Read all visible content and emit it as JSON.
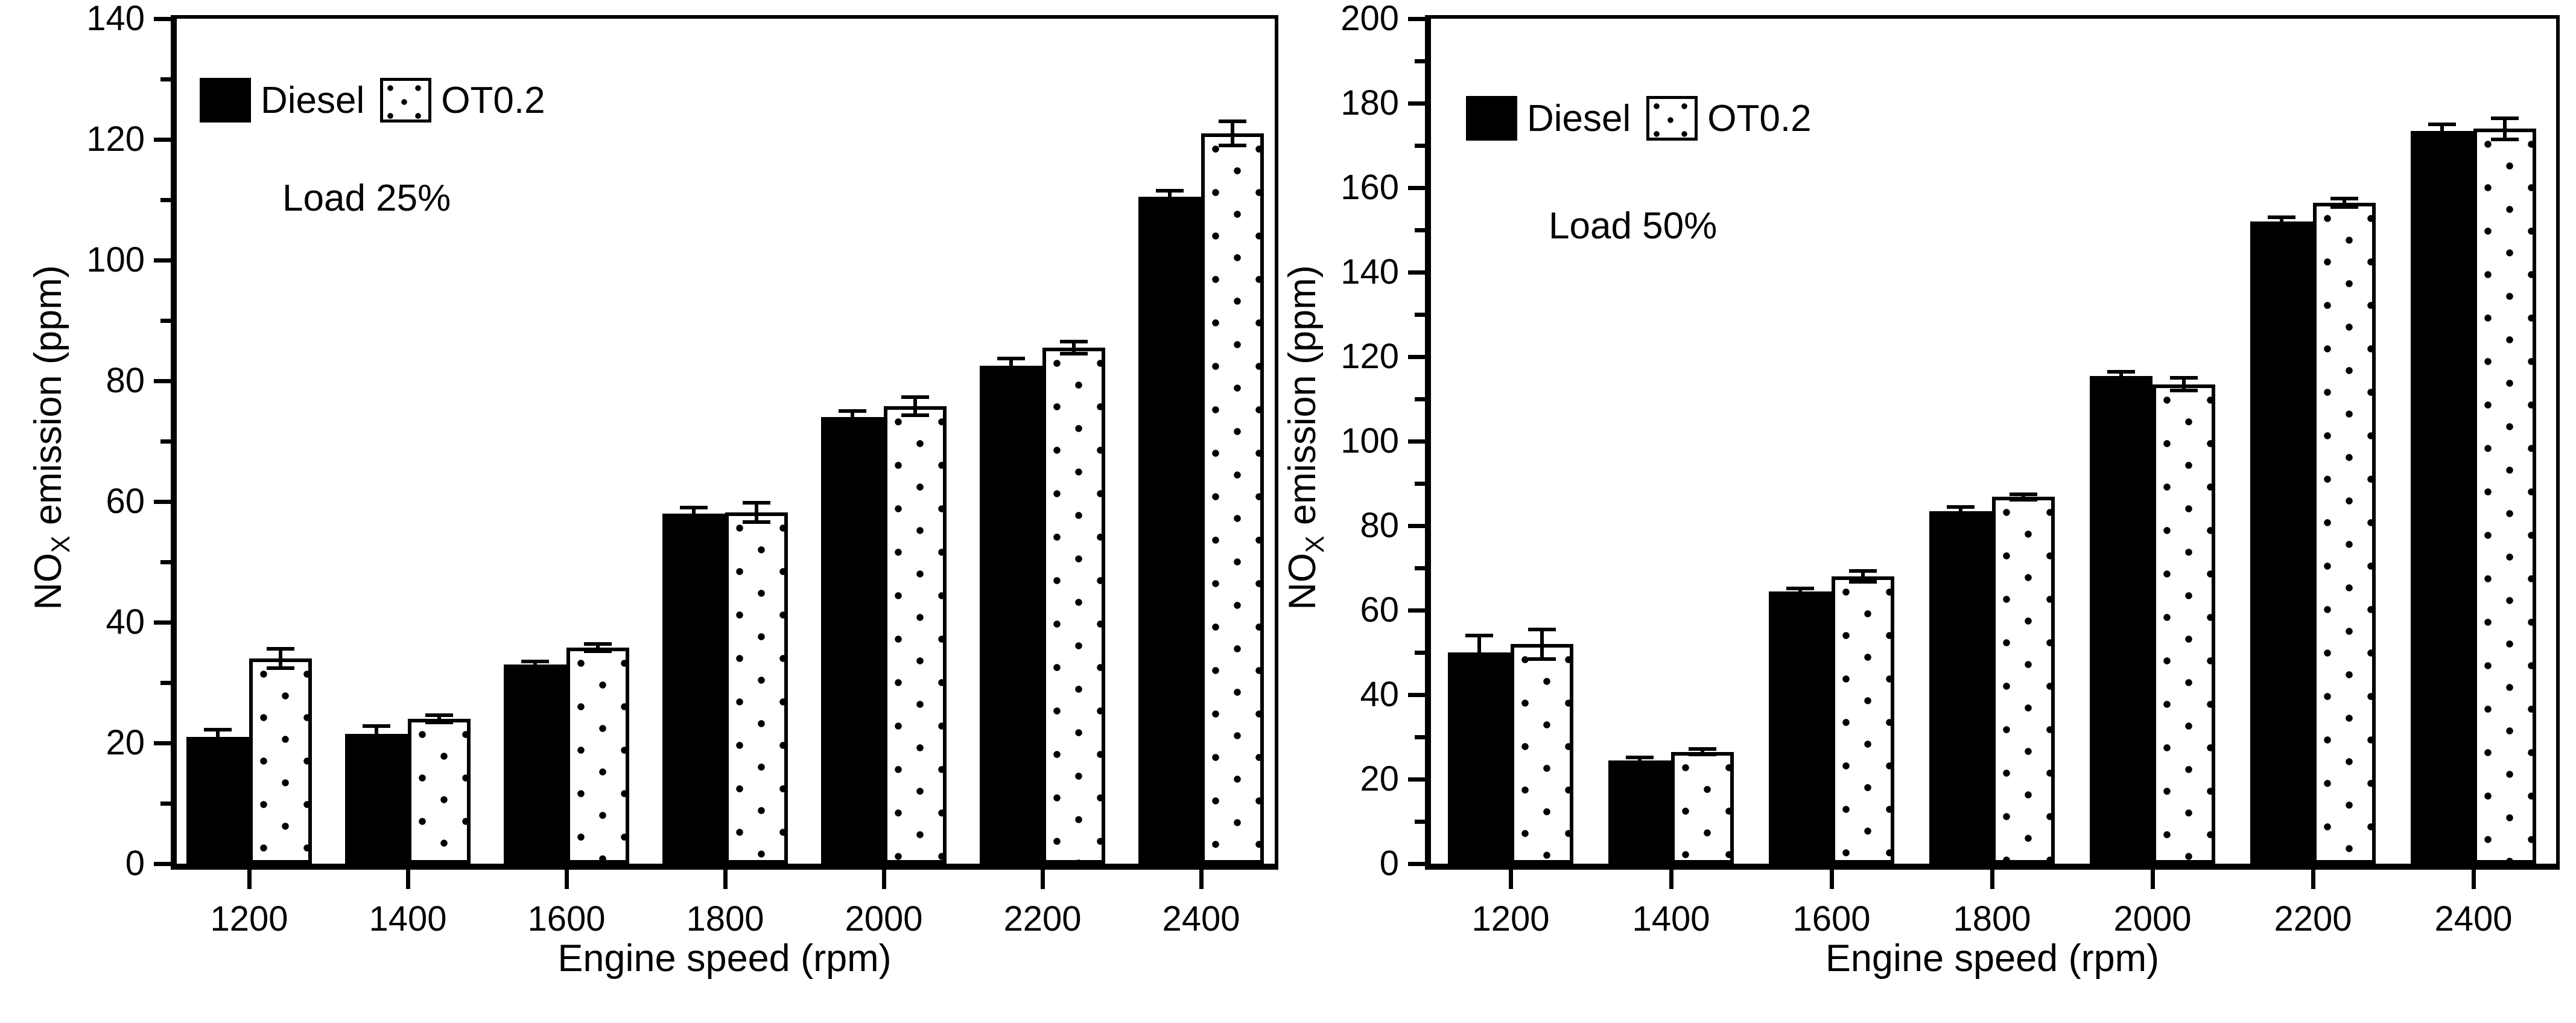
{
  "figure": {
    "background": "#ffffff",
    "foreground": "#000000",
    "panels": 2
  },
  "chart_data": [
    {
      "type": "bar",
      "annotation": "Load 25%",
      "xlabel": "Engine speed (rpm)",
      "ylabel": "NO_X emission (ppm)",
      "ylabel_parts": {
        "base": "NO",
        "sub": "X",
        "rest": " emission (ppm)"
      },
      "categories": [
        "1200",
        "1400",
        "1600",
        "1800",
        "2000",
        "2200",
        "2400"
      ],
      "ylim": [
        0,
        140
      ],
      "ytick_step": 20,
      "yminor_step": 10,
      "grid": "off",
      "legend_position": "top-left",
      "series": [
        {
          "name": "Diesel",
          "style": "solid-black",
          "values": [
            21,
            21.5,
            33,
            58,
            74,
            82.5,
            110.5
          ],
          "errors": [
            1.2,
            1.3,
            0.5,
            1.0,
            1.0,
            1.2,
            1.0
          ]
        },
        {
          "name": "OT0.2",
          "style": "white-dotted",
          "values": [
            34,
            24,
            35.8,
            58.2,
            75.8,
            85.5,
            121
          ],
          "errors": [
            1.6,
            0.6,
            0.6,
            1.6,
            1.5,
            1.0,
            2.0
          ]
        }
      ]
    },
    {
      "type": "bar",
      "annotation": "Load 50%",
      "xlabel": "Engine speed (rpm)",
      "ylabel": "NO_X emission (ppm)",
      "ylabel_parts": {
        "base": "NO",
        "sub": "X",
        "rest": " emission (ppm)"
      },
      "categories": [
        "1200",
        "1400",
        "1600",
        "1800",
        "2000",
        "2200",
        "2400"
      ],
      "ylim": [
        0,
        200
      ],
      "ytick_step": 20,
      "yminor_step": 10,
      "grid": "off",
      "legend_position": "top-left",
      "series": [
        {
          "name": "Diesel",
          "style": "solid-black",
          "values": [
            50,
            24.5,
            64.5,
            83.5,
            115.5,
            152,
            173.5
          ],
          "errors": [
            4.0,
            0.6,
            0.6,
            1.0,
            1.0,
            1.0,
            1.5
          ]
        },
        {
          "name": "OT0.2",
          "style": "white-dotted",
          "values": [
            52,
            26.5,
            68,
            86.8,
            113.5,
            156.5,
            174
          ],
          "errors": [
            3.5,
            0.6,
            1.3,
            0.6,
            1.5,
            1.0,
            2.5
          ]
        }
      ]
    }
  ]
}
